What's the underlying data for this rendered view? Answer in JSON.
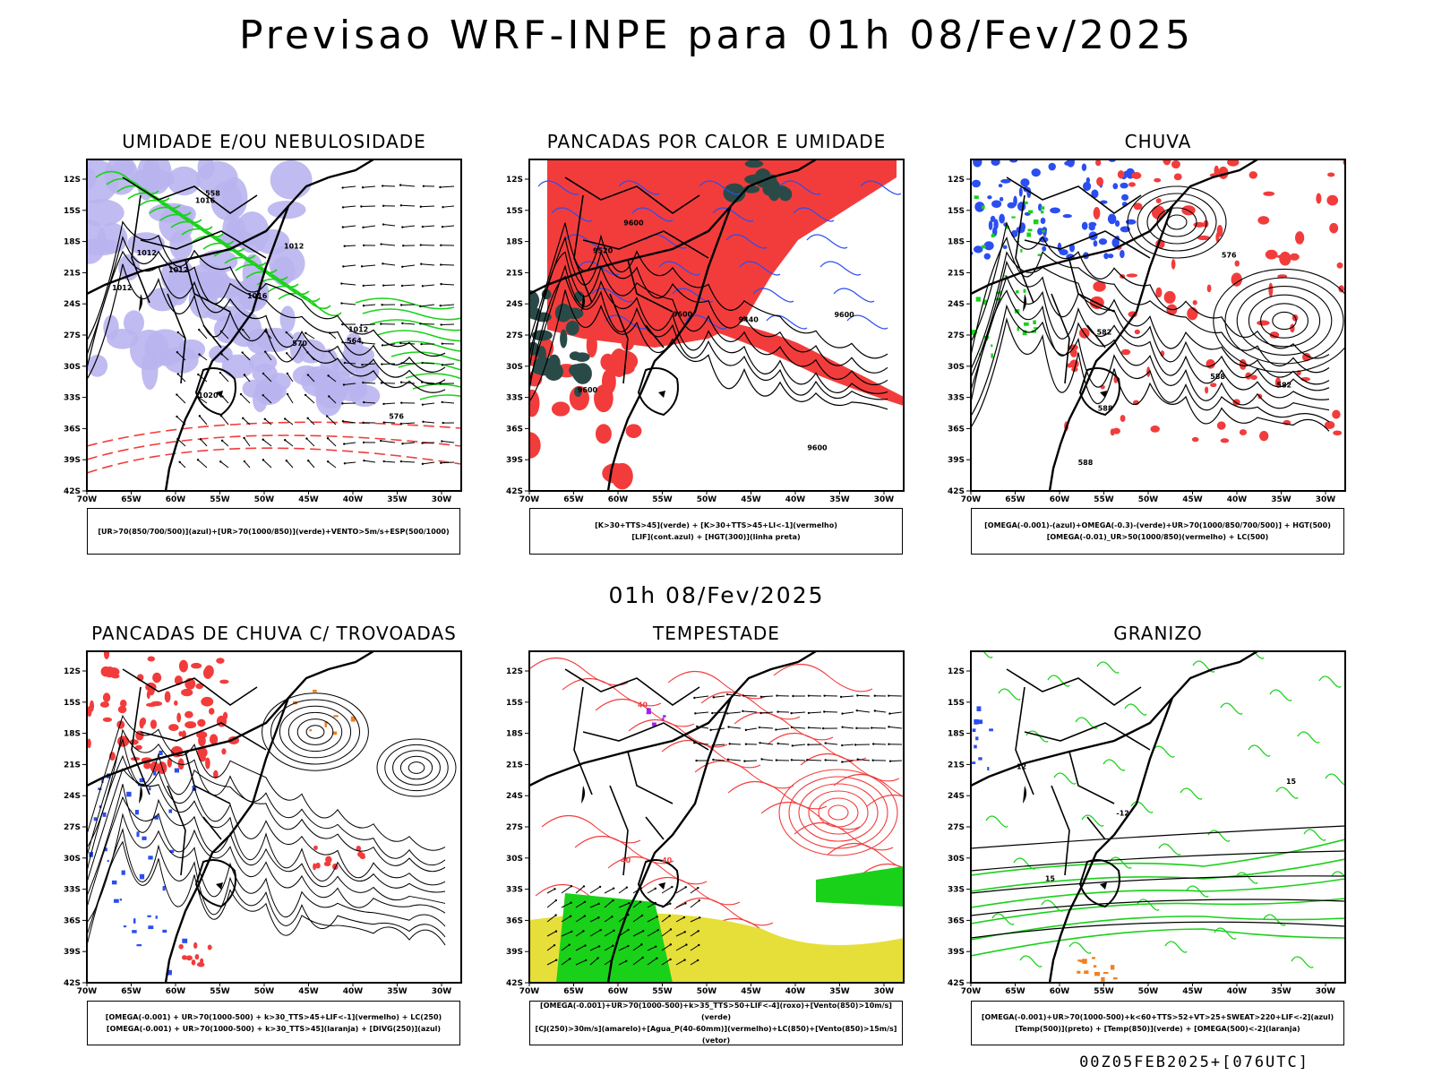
{
  "main_title": "Previsao WRF-INPE  para 01h 08/Fev/2025",
  "mid_title": "01h 08/Fev/2025",
  "footer": "00Z05FEB2025+[076UTC]",
  "axes": {
    "lat_labels": [
      "12S",
      "15S",
      "18S",
      "21S",
      "24S",
      "27S",
      "30S",
      "33S",
      "36S",
      "39S",
      "42S"
    ],
    "lon_labels": [
      "70W",
      "65W",
      "60W",
      "55W",
      "50W",
      "45W",
      "40W",
      "35W",
      "30W"
    ]
  },
  "colors": {
    "red": "#f23c3c",
    "blue": "#2b4ef0",
    "green": "#19d119",
    "lavender": "#b9b4ee",
    "yellow": "#e6df3a",
    "darkteal": "#2a4a48",
    "orange": "#f08020",
    "purple": "#a020f0"
  },
  "panels": [
    {
      "id": "umidade",
      "title": "UMIDADE E/OU NEBULOSIDADE",
      "legend": [
        "[UR>70(850/700/500)](azul)+[UR>70(1000/850)](verde)+VENTO>5m/s+ESP(500/1000)"
      ],
      "contour_labels": [
        "1012",
        "1012",
        "1016",
        "1016",
        "1020",
        "1012",
        "1012",
        "570",
        "576",
        "564",
        "558",
        "1012"
      ]
    },
    {
      "id": "pancadas-calor",
      "title": "PANCADAS POR CALOR E UMIDADE",
      "legend": [
        "[K>30+TTS>45](verde) + [K>30+TTS>45+LI<-1](vermelho)",
        "[LIF](cont.azul) + [HGT(300)](linha preta)"
      ],
      "contour_labels": [
        "9600",
        "9600",
        "9600",
        "9600",
        "9600",
        "9520",
        "9440"
      ]
    },
    {
      "id": "chuva",
      "title": "CHUVA",
      "legend": [
        "[OMEGA(-0.001)-(azul)+OMEGA(-0.3)-(verde)+UR>70(1000/850/700/500)] + HGT(500)",
        "[OMEGA(-0.01)_UR>50(1000/850)(vermelho) + LC(500)"
      ],
      "contour_labels": [
        "588",
        "588",
        "582",
        "588",
        "582",
        "576"
      ]
    },
    {
      "id": "trovoadas",
      "title": "PANCADAS DE CHUVA C/ TROVOADAS",
      "legend": [
        "[OMEGA(-0.001) + UR>70(1000-500) + k>30_TTS>45+LIF<-1](vermelho) + LC(250)",
        "[OMEGA(-0.001) + UR>70(1000-500) + k>30_TTS>45](laranja) + [DIVG(250)](azul)"
      ],
      "contour_labels": []
    },
    {
      "id": "tempestade",
      "title": "TEMPESTADE",
      "legend": [
        "[OMEGA(-0.001)+UR>70(1000-500)+k>35_TTS>50+LIF<-4](roxo)+[Vento(850)>10m/s](verde)",
        "[CJ(250)>30m/s](amarelo)+[Agua_P(40-60mm)](vermelho)+LC(850)+[Vento(850)>15m/s](vetor)"
      ],
      "contour_labels": [
        "40",
        "40",
        "40"
      ]
    },
    {
      "id": "granizo",
      "title": "GRANIZO",
      "legend": [
        "[OMEGA(-0.001)+UR>70(1000-500)+k<60+TTS>52+VT>25+SWEAT>220+LIF<-2](azul)",
        "[Temp(500)](preto) + [Temp(850)](verde) + [OMEGA(500)<-2](laranja)"
      ],
      "contour_labels": [
        "-12",
        "-12",
        "15",
        "15"
      ]
    }
  ]
}
